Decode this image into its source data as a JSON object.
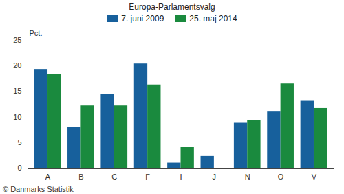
{
  "chart_data": {
    "type": "bar",
    "title": "Europa-Parlamentsvalg",
    "ylabel": "Pct.",
    "caption": "© Danmarks Statistik",
    "categories": [
      "A",
      "B",
      "C",
      "F",
      "I",
      "J",
      "N",
      "O",
      "V"
    ],
    "series": [
      {
        "name": "7. juni 2009",
        "color": "#17609c",
        "values": [
          19.2,
          8.0,
          14.5,
          20.4,
          1.0,
          2.3,
          8.8,
          11.0,
          13.1
        ]
      },
      {
        "name": "25. maj 2014",
        "color": "#1a8a3e",
        "values": [
          18.3,
          12.2,
          12.2,
          16.3,
          4.1,
          null,
          9.4,
          16.5,
          11.7
        ]
      }
    ],
    "ylim": [
      0,
      25
    ],
    "yticks": [
      0,
      5,
      10,
      15,
      20,
      25
    ],
    "grid": false,
    "legend": "top"
  }
}
